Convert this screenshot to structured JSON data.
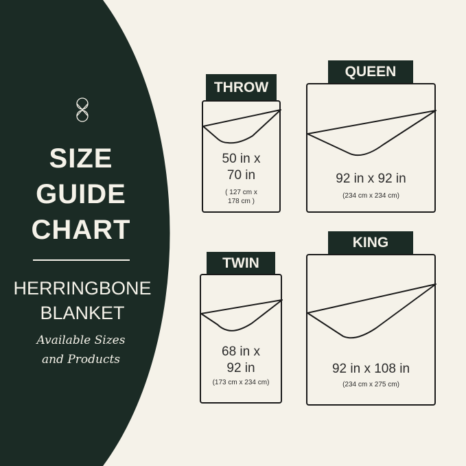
{
  "colors": {
    "panel": "#1b2b25",
    "background": "#f5f2e9",
    "text_light": "#f5f2e9",
    "outline": "#1a1a1a"
  },
  "logo_icon": "interlocking-rings-logo",
  "heading": {
    "line1": "SIZE",
    "line2": "GUIDE",
    "line3": "CHART"
  },
  "product": {
    "line1": "HERRINGBONE",
    "line2": "BLANKET"
  },
  "tagline": {
    "line1": "Available Sizes",
    "line2": "and Products"
  },
  "sizes": [
    {
      "label": "THROW",
      "inches_line1": "50 in x",
      "inches_line2": "70 in",
      "cm_line1": "( 127 cm x",
      "cm_line2": "178 cm )"
    },
    {
      "label": "QUEEN",
      "inches": "92 in x 92 in",
      "cm": "(234 cm x 234 cm)"
    },
    {
      "label": "TWIN",
      "inches_line1": "68 in x",
      "inches_line2": "92 in",
      "cm": "(173 cm x 234 cm)"
    },
    {
      "label": "KING",
      "inches": "92 in x 108 in",
      "cm": "(234 cm x 275 cm)"
    }
  ]
}
